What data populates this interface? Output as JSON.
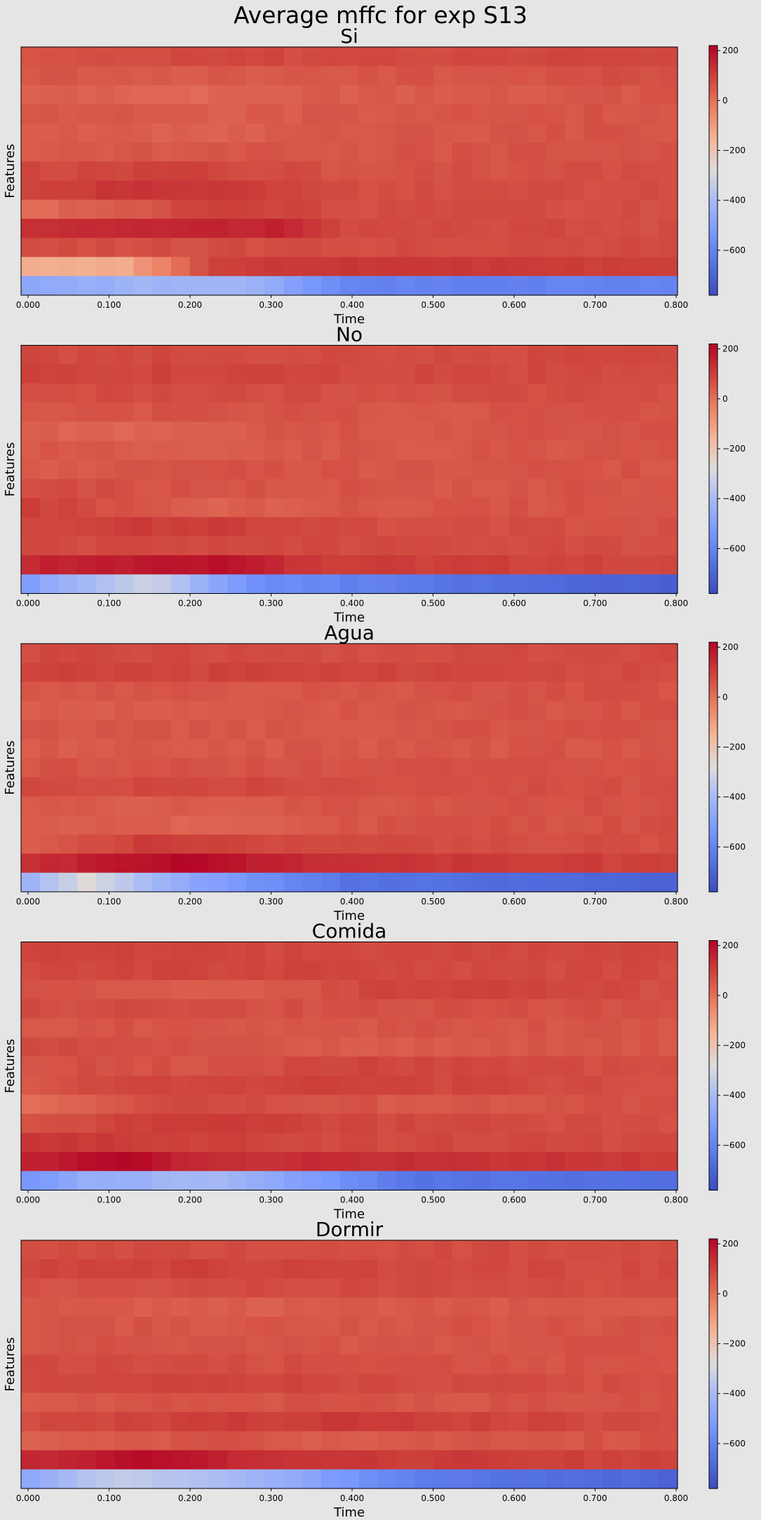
{
  "suptitle": "Average mffc for exp S13",
  "colormap": "coolwarm",
  "colors": {
    "background": "#e5e5e5",
    "cold": "#3b4cc0",
    "neutral": "#dddcdc",
    "warm": "#b40426"
  },
  "chart_data": [
    {
      "type": "heatmap",
      "title": "Si",
      "xlabel": "Time",
      "ylabel": "Features",
      "xlim": [
        0.0,
        0.8
      ],
      "x_ticks": [
        "0.000",
        "0.100",
        "0.200",
        "0.300",
        "0.400",
        "0.500",
        "0.600",
        "0.700",
        "0.800"
      ],
      "colorbar": {
        "vmin": -780,
        "vmax": 220,
        "ticks": [
          "200",
          "0",
          "−200",
          "−400",
          "−600"
        ]
      },
      "rows": 13,
      "cols": 35,
      "row_profiles": [
        [
          [
            0,
            70
          ],
          [
            0.4,
            80
          ],
          [
            1,
            85
          ]
        ],
        [
          [
            0,
            55
          ],
          [
            0.35,
            45
          ],
          [
            0.6,
            60
          ],
          [
            1,
            70
          ]
        ],
        [
          [
            0,
            40
          ],
          [
            0.3,
            20
          ],
          [
            0.45,
            40
          ],
          [
            1,
            55
          ]
        ],
        [
          [
            0,
            60
          ],
          [
            0.3,
            35
          ],
          [
            0.45,
            50
          ],
          [
            1,
            60
          ]
        ],
        [
          [
            0,
            45
          ],
          [
            0.3,
            30
          ],
          [
            0.5,
            50
          ],
          [
            1,
            60
          ]
        ],
        [
          [
            0,
            50
          ],
          [
            0.3,
            55
          ],
          [
            0.5,
            55
          ],
          [
            1,
            65
          ]
        ],
        [
          [
            0,
            80
          ],
          [
            0.25,
            95
          ],
          [
            0.5,
            60
          ],
          [
            1,
            70
          ]
        ],
        [
          [
            0,
            95
          ],
          [
            0.2,
            125
          ],
          [
            0.4,
            90
          ],
          [
            0.55,
            70
          ],
          [
            1,
            75
          ]
        ],
        [
          [
            0,
            10
          ],
          [
            0.15,
            40
          ],
          [
            0.3,
            100
          ],
          [
            0.5,
            70
          ],
          [
            1,
            70
          ]
        ],
        [
          [
            0,
            120
          ],
          [
            0.2,
            150
          ],
          [
            0.4,
            155
          ],
          [
            0.5,
            80
          ],
          [
            1,
            75
          ]
        ],
        [
          [
            0,
            70
          ],
          [
            0.3,
            70
          ],
          [
            0.6,
            75
          ],
          [
            1,
            80
          ]
        ],
        [
          [
            0,
            -140
          ],
          [
            0.15,
            -140
          ],
          [
            0.3,
            100
          ],
          [
            0.5,
            120
          ],
          [
            1,
            95
          ]
        ],
        [
          [
            0,
            -480
          ],
          [
            0.2,
            -420
          ],
          [
            0.35,
            -420
          ],
          [
            0.5,
            -600
          ],
          [
            1,
            -600
          ]
        ]
      ]
    },
    {
      "type": "heatmap",
      "title": "No",
      "xlabel": "Time",
      "ylabel": "Features",
      "xlim": [
        0.0,
        0.8
      ],
      "x_ticks": [
        "0.000",
        "0.100",
        "0.200",
        "0.300",
        "0.400",
        "0.500",
        "0.600",
        "0.700",
        "0.800"
      ],
      "colorbar": {
        "vmin": -780,
        "vmax": 220,
        "ticks": [
          "200",
          "0",
          "−200",
          "−400",
          "−600"
        ]
      },
      "rows": 13,
      "cols": 35,
      "row_profiles": [
        [
          [
            0,
            80
          ],
          [
            0.5,
            75
          ],
          [
            1,
            80
          ]
        ],
        [
          [
            0,
            95
          ],
          [
            0.4,
            85
          ],
          [
            1,
            75
          ]
        ],
        [
          [
            0,
            75
          ],
          [
            0.4,
            70
          ],
          [
            1,
            70
          ]
        ],
        [
          [
            0,
            55
          ],
          [
            0.3,
            60
          ],
          [
            0.6,
            55
          ],
          [
            1,
            65
          ]
        ],
        [
          [
            0,
            30
          ],
          [
            0.2,
            20
          ],
          [
            0.4,
            55
          ],
          [
            1,
            60
          ]
        ],
        [
          [
            0,
            50
          ],
          [
            0.3,
            45
          ],
          [
            1,
            60
          ]
        ],
        [
          [
            0,
            40
          ],
          [
            0.3,
            60
          ],
          [
            0.6,
            55
          ],
          [
            1,
            60
          ]
        ],
        [
          [
            0,
            75
          ],
          [
            0.25,
            60
          ],
          [
            0.5,
            55
          ],
          [
            1,
            60
          ]
        ],
        [
          [
            0,
            100
          ],
          [
            0.15,
            60
          ],
          [
            0.3,
            30
          ],
          [
            0.5,
            55
          ],
          [
            1,
            60
          ]
        ],
        [
          [
            0,
            90
          ],
          [
            0.25,
            110
          ],
          [
            0.5,
            70
          ],
          [
            1,
            65
          ]
        ],
        [
          [
            0,
            75
          ],
          [
            0.35,
            80
          ],
          [
            1,
            70
          ]
        ],
        [
          [
            0,
            150
          ],
          [
            0.3,
            190
          ],
          [
            0.45,
            110
          ],
          [
            1,
            85
          ]
        ],
        [
          [
            0,
            -520
          ],
          [
            0.2,
            -300
          ],
          [
            0.35,
            -560
          ],
          [
            0.7,
            -660
          ],
          [
            1,
            -720
          ]
        ]
      ]
    },
    {
      "type": "heatmap",
      "title": "Agua",
      "xlabel": "Time",
      "ylabel": "Features",
      "xlim": [
        0.0,
        0.8
      ],
      "x_ticks": [
        "0.000",
        "0.100",
        "0.200",
        "0.300",
        "0.400",
        "0.500",
        "0.600",
        "0.700",
        "0.800"
      ],
      "colorbar": {
        "vmin": -780,
        "vmax": 220,
        "ticks": [
          "200",
          "0",
          "−200",
          "−400",
          "−600"
        ]
      },
      "rows": 13,
      "cols": 35,
      "row_profiles": [
        [
          [
            0,
            80
          ],
          [
            0.5,
            75
          ],
          [
            1,
            80
          ]
        ],
        [
          [
            0,
            90
          ],
          [
            0.4,
            90
          ],
          [
            1,
            75
          ]
        ],
        [
          [
            0,
            60
          ],
          [
            0.4,
            55
          ],
          [
            1,
            65
          ]
        ],
        [
          [
            0,
            40
          ],
          [
            0.3,
            45
          ],
          [
            0.6,
            55
          ],
          [
            1,
            60
          ]
        ],
        [
          [
            0,
            55
          ],
          [
            0.4,
            55
          ],
          [
            1,
            60
          ]
        ],
        [
          [
            0,
            45
          ],
          [
            0.4,
            50
          ],
          [
            1,
            60
          ]
        ],
        [
          [
            0,
            60
          ],
          [
            0.4,
            65
          ],
          [
            1,
            60
          ]
        ],
        [
          [
            0,
            75
          ],
          [
            0.3,
            85
          ],
          [
            0.5,
            70
          ],
          [
            1,
            65
          ]
        ],
        [
          [
            0,
            50
          ],
          [
            0.3,
            40
          ],
          [
            0.5,
            60
          ],
          [
            1,
            65
          ]
        ],
        [
          [
            0,
            45
          ],
          [
            0.3,
            25
          ],
          [
            0.5,
            55
          ],
          [
            1,
            70
          ]
        ],
        [
          [
            0,
            20
          ],
          [
            0.2,
            110
          ],
          [
            0.35,
            85
          ],
          [
            1,
            65
          ]
        ],
        [
          [
            0,
            130
          ],
          [
            0.25,
            210
          ],
          [
            0.45,
            130
          ],
          [
            1,
            90
          ]
        ],
        [
          [
            0,
            -450
          ],
          [
            0.1,
            -270
          ],
          [
            0.25,
            -470
          ],
          [
            0.5,
            -650
          ],
          [
            1,
            -700
          ]
        ]
      ]
    },
    {
      "type": "heatmap",
      "title": "Comida",
      "xlabel": "Time",
      "ylabel": "Features",
      "xlim": [
        0.0,
        0.8
      ],
      "x_ticks": [
        "0.000",
        "0.100",
        "0.200",
        "0.300",
        "0.400",
        "0.500",
        "0.600",
        "0.700",
        "0.800"
      ],
      "colorbar": {
        "vmin": -780,
        "vmax": 220,
        "ticks": [
          "200",
          "0",
          "−200",
          "−400",
          "−600"
        ]
      },
      "rows": 13,
      "cols": 35,
      "row_profiles": [
        [
          [
            0,
            90
          ],
          [
            0.5,
            80
          ],
          [
            1,
            80
          ]
        ],
        [
          [
            0,
            75
          ],
          [
            0.3,
            90
          ],
          [
            0.6,
            80
          ],
          [
            1,
            75
          ]
        ],
        [
          [
            0,
            70
          ],
          [
            0.35,
            40
          ],
          [
            0.6,
            100
          ],
          [
            1,
            70
          ]
        ],
        [
          [
            0,
            75
          ],
          [
            0.5,
            65
          ],
          [
            1,
            65
          ]
        ],
        [
          [
            0,
            60
          ],
          [
            0.5,
            55
          ],
          [
            1,
            60
          ]
        ],
        [
          [
            0,
            75
          ],
          [
            0.3,
            65
          ],
          [
            0.5,
            40
          ],
          [
            1,
            60
          ]
        ],
        [
          [
            0,
            70
          ],
          [
            0.3,
            60
          ],
          [
            0.5,
            90
          ],
          [
            1,
            65
          ]
        ],
        [
          [
            0,
            45
          ],
          [
            0.15,
            80
          ],
          [
            0.45,
            95
          ],
          [
            1,
            70
          ]
        ],
        [
          [
            0,
            5
          ],
          [
            0.2,
            75
          ],
          [
            0.4,
            70
          ],
          [
            0.6,
            50
          ],
          [
            1,
            65
          ]
        ],
        [
          [
            0,
            60
          ],
          [
            0.3,
            120
          ],
          [
            0.5,
            80
          ],
          [
            1,
            70
          ]
        ],
        [
          [
            0,
            120
          ],
          [
            0.25,
            100
          ],
          [
            0.5,
            80
          ],
          [
            1,
            75
          ]
        ],
        [
          [
            0,
            150
          ],
          [
            0.15,
            220
          ],
          [
            0.3,
            130
          ],
          [
            0.5,
            140
          ],
          [
            1,
            110
          ]
        ],
        [
          [
            0,
            -560
          ],
          [
            0.1,
            -450
          ],
          [
            0.3,
            -400
          ],
          [
            0.6,
            -650
          ],
          [
            1,
            -660
          ]
        ]
      ]
    },
    {
      "type": "heatmap",
      "title": "Dormir",
      "xlabel": "Time",
      "ylabel": "Features",
      "xlim": [
        0.0,
        0.8
      ],
      "x_ticks": [
        "0.000",
        "0.100",
        "0.200",
        "0.300",
        "0.400",
        "0.500",
        "0.600",
        "0.700",
        "0.800"
      ],
      "colorbar": {
        "vmin": -780,
        "vmax": 220,
        "ticks": [
          "200",
          "0",
          "−200",
          "−400",
          "−600"
        ]
      },
      "rows": 13,
      "cols": 35,
      "row_profiles": [
        [
          [
            0,
            75
          ],
          [
            0.5,
            75
          ],
          [
            1,
            75
          ]
        ],
        [
          [
            0,
            90
          ],
          [
            0.3,
            95
          ],
          [
            0.6,
            80
          ],
          [
            1,
            75
          ]
        ],
        [
          [
            0,
            55
          ],
          [
            0.3,
            75
          ],
          [
            0.6,
            75
          ],
          [
            1,
            65
          ]
        ],
        [
          [
            0,
            50
          ],
          [
            0.35,
            40
          ],
          [
            1,
            55
          ]
        ],
        [
          [
            0,
            60
          ],
          [
            0.3,
            55
          ],
          [
            1,
            60
          ]
        ],
        [
          [
            0,
            60
          ],
          [
            0.4,
            55
          ],
          [
            1,
            60
          ]
        ],
        [
          [
            0,
            75
          ],
          [
            0.5,
            65
          ],
          [
            1,
            60
          ]
        ],
        [
          [
            0,
            70
          ],
          [
            0.3,
            90
          ],
          [
            0.6,
            75
          ],
          [
            1,
            65
          ]
        ],
        [
          [
            0,
            55
          ],
          [
            0.4,
            60
          ],
          [
            1,
            60
          ]
        ],
        [
          [
            0,
            75
          ],
          [
            0.3,
            100
          ],
          [
            0.5,
            110
          ],
          [
            1,
            70
          ]
        ],
        [
          [
            0,
            30
          ],
          [
            0.3,
            60
          ],
          [
            0.5,
            40
          ],
          [
            1,
            65
          ]
        ],
        [
          [
            0,
            140
          ],
          [
            0.2,
            200
          ],
          [
            0.4,
            120
          ],
          [
            1,
            85
          ]
        ],
        [
          [
            0,
            -480
          ],
          [
            0.15,
            -330
          ],
          [
            0.4,
            -450
          ],
          [
            0.6,
            -620
          ],
          [
            1,
            -700
          ]
        ]
      ]
    }
  ]
}
